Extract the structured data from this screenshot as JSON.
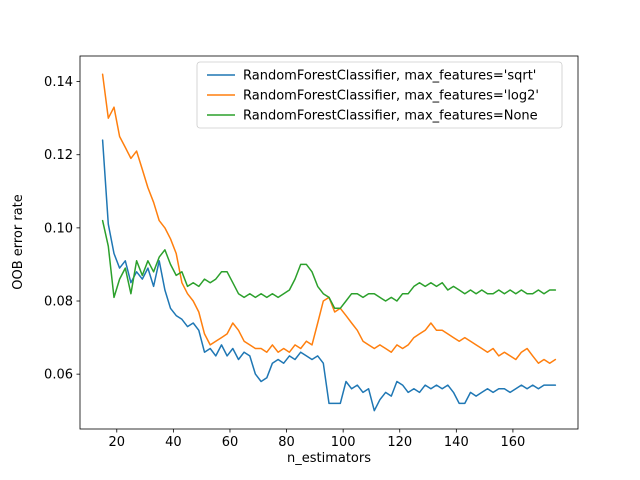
{
  "chart_data": {
    "type": "line",
    "title": "",
    "xlabel": "n_estimators",
    "ylabel": "OOB error rate",
    "xlim": [
      7,
      183
    ],
    "ylim": [
      0.045,
      0.147
    ],
    "xticks": [
      20,
      40,
      60,
      80,
      100,
      120,
      140,
      160
    ],
    "yticks": [
      0.06,
      0.08,
      0.1,
      0.12,
      0.14
    ],
    "ytick_labels": [
      "0.06",
      "0.08",
      "0.10",
      "0.12",
      "0.14"
    ],
    "grid": false,
    "legend_position": "upper center",
    "background": "#ffffff",
    "spine_color": "#000000",
    "x": [
      15,
      17,
      19,
      21,
      23,
      25,
      27,
      29,
      31,
      33,
      35,
      37,
      39,
      41,
      43,
      45,
      47,
      49,
      51,
      53,
      55,
      57,
      59,
      61,
      63,
      65,
      67,
      69,
      71,
      73,
      75,
      77,
      79,
      81,
      83,
      85,
      87,
      89,
      91,
      93,
      95,
      97,
      99,
      101,
      103,
      105,
      107,
      109,
      111,
      113,
      115,
      117,
      119,
      121,
      123,
      125,
      127,
      129,
      131,
      133,
      135,
      137,
      139,
      141,
      143,
      145,
      147,
      149,
      151,
      153,
      155,
      157,
      159,
      161,
      163,
      165,
      167,
      169,
      171,
      173,
      175
    ],
    "series": [
      {
        "name": "RandomForestClassifier, max_features='sqrt'",
        "color": "#1f77b4",
        "values": [
          0.124,
          0.101,
          0.093,
          0.089,
          0.091,
          0.085,
          0.088,
          0.086,
          0.089,
          0.084,
          0.091,
          0.083,
          0.078,
          0.076,
          0.075,
          0.073,
          0.074,
          0.072,
          0.066,
          0.067,
          0.065,
          0.068,
          0.065,
          0.067,
          0.064,
          0.066,
          0.065,
          0.06,
          0.058,
          0.059,
          0.063,
          0.064,
          0.063,
          0.065,
          0.064,
          0.066,
          0.065,
          0.064,
          0.065,
          0.063,
          0.052,
          0.052,
          0.052,
          0.058,
          0.056,
          0.057,
          0.055,
          0.056,
          0.05,
          0.053,
          0.055,
          0.054,
          0.058,
          0.057,
          0.055,
          0.056,
          0.055,
          0.057,
          0.056,
          0.057,
          0.056,
          0.057,
          0.055,
          0.052,
          0.052,
          0.055,
          0.054,
          0.055,
          0.056,
          0.055,
          0.056,
          0.056,
          0.055,
          0.056,
          0.057,
          0.056,
          0.057,
          0.056,
          0.057,
          0.057,
          0.057
        ]
      },
      {
        "name": "RandomForestClassifier, max_features='log2'",
        "color": "#ff7f0e",
        "values": [
          0.142,
          0.13,
          0.133,
          0.125,
          0.122,
          0.119,
          0.121,
          0.116,
          0.111,
          0.107,
          0.102,
          0.1,
          0.097,
          0.093,
          0.085,
          0.082,
          0.08,
          0.077,
          0.071,
          0.068,
          0.069,
          0.07,
          0.071,
          0.074,
          0.072,
          0.069,
          0.068,
          0.067,
          0.067,
          0.066,
          0.068,
          0.066,
          0.067,
          0.066,
          0.068,
          0.067,
          0.069,
          0.068,
          0.074,
          0.08,
          0.081,
          0.077,
          0.078,
          0.076,
          0.074,
          0.072,
          0.069,
          0.068,
          0.067,
          0.068,
          0.067,
          0.066,
          0.068,
          0.067,
          0.068,
          0.07,
          0.071,
          0.072,
          0.074,
          0.072,
          0.072,
          0.071,
          0.07,
          0.069,
          0.07,
          0.069,
          0.068,
          0.067,
          0.066,
          0.067,
          0.065,
          0.066,
          0.065,
          0.064,
          0.066,
          0.067,
          0.065,
          0.063,
          0.064,
          0.063,
          0.064
        ]
      },
      {
        "name": "RandomForestClassifier, max_features=None",
        "color": "#2ca02c",
        "values": [
          0.102,
          0.095,
          0.081,
          0.086,
          0.089,
          0.082,
          0.091,
          0.087,
          0.091,
          0.088,
          0.092,
          0.094,
          0.09,
          0.087,
          0.088,
          0.084,
          0.085,
          0.084,
          0.086,
          0.085,
          0.086,
          0.088,
          0.088,
          0.085,
          0.082,
          0.081,
          0.082,
          0.081,
          0.082,
          0.081,
          0.082,
          0.081,
          0.082,
          0.083,
          0.086,
          0.09,
          0.09,
          0.088,
          0.084,
          0.082,
          0.081,
          0.078,
          0.078,
          0.08,
          0.082,
          0.082,
          0.081,
          0.082,
          0.082,
          0.081,
          0.08,
          0.081,
          0.08,
          0.082,
          0.082,
          0.084,
          0.085,
          0.084,
          0.085,
          0.084,
          0.085,
          0.083,
          0.084,
          0.083,
          0.082,
          0.083,
          0.082,
          0.083,
          0.082,
          0.082,
          0.083,
          0.082,
          0.083,
          0.082,
          0.083,
          0.082,
          0.082,
          0.083,
          0.082,
          0.083,
          0.083
        ]
      }
    ]
  }
}
